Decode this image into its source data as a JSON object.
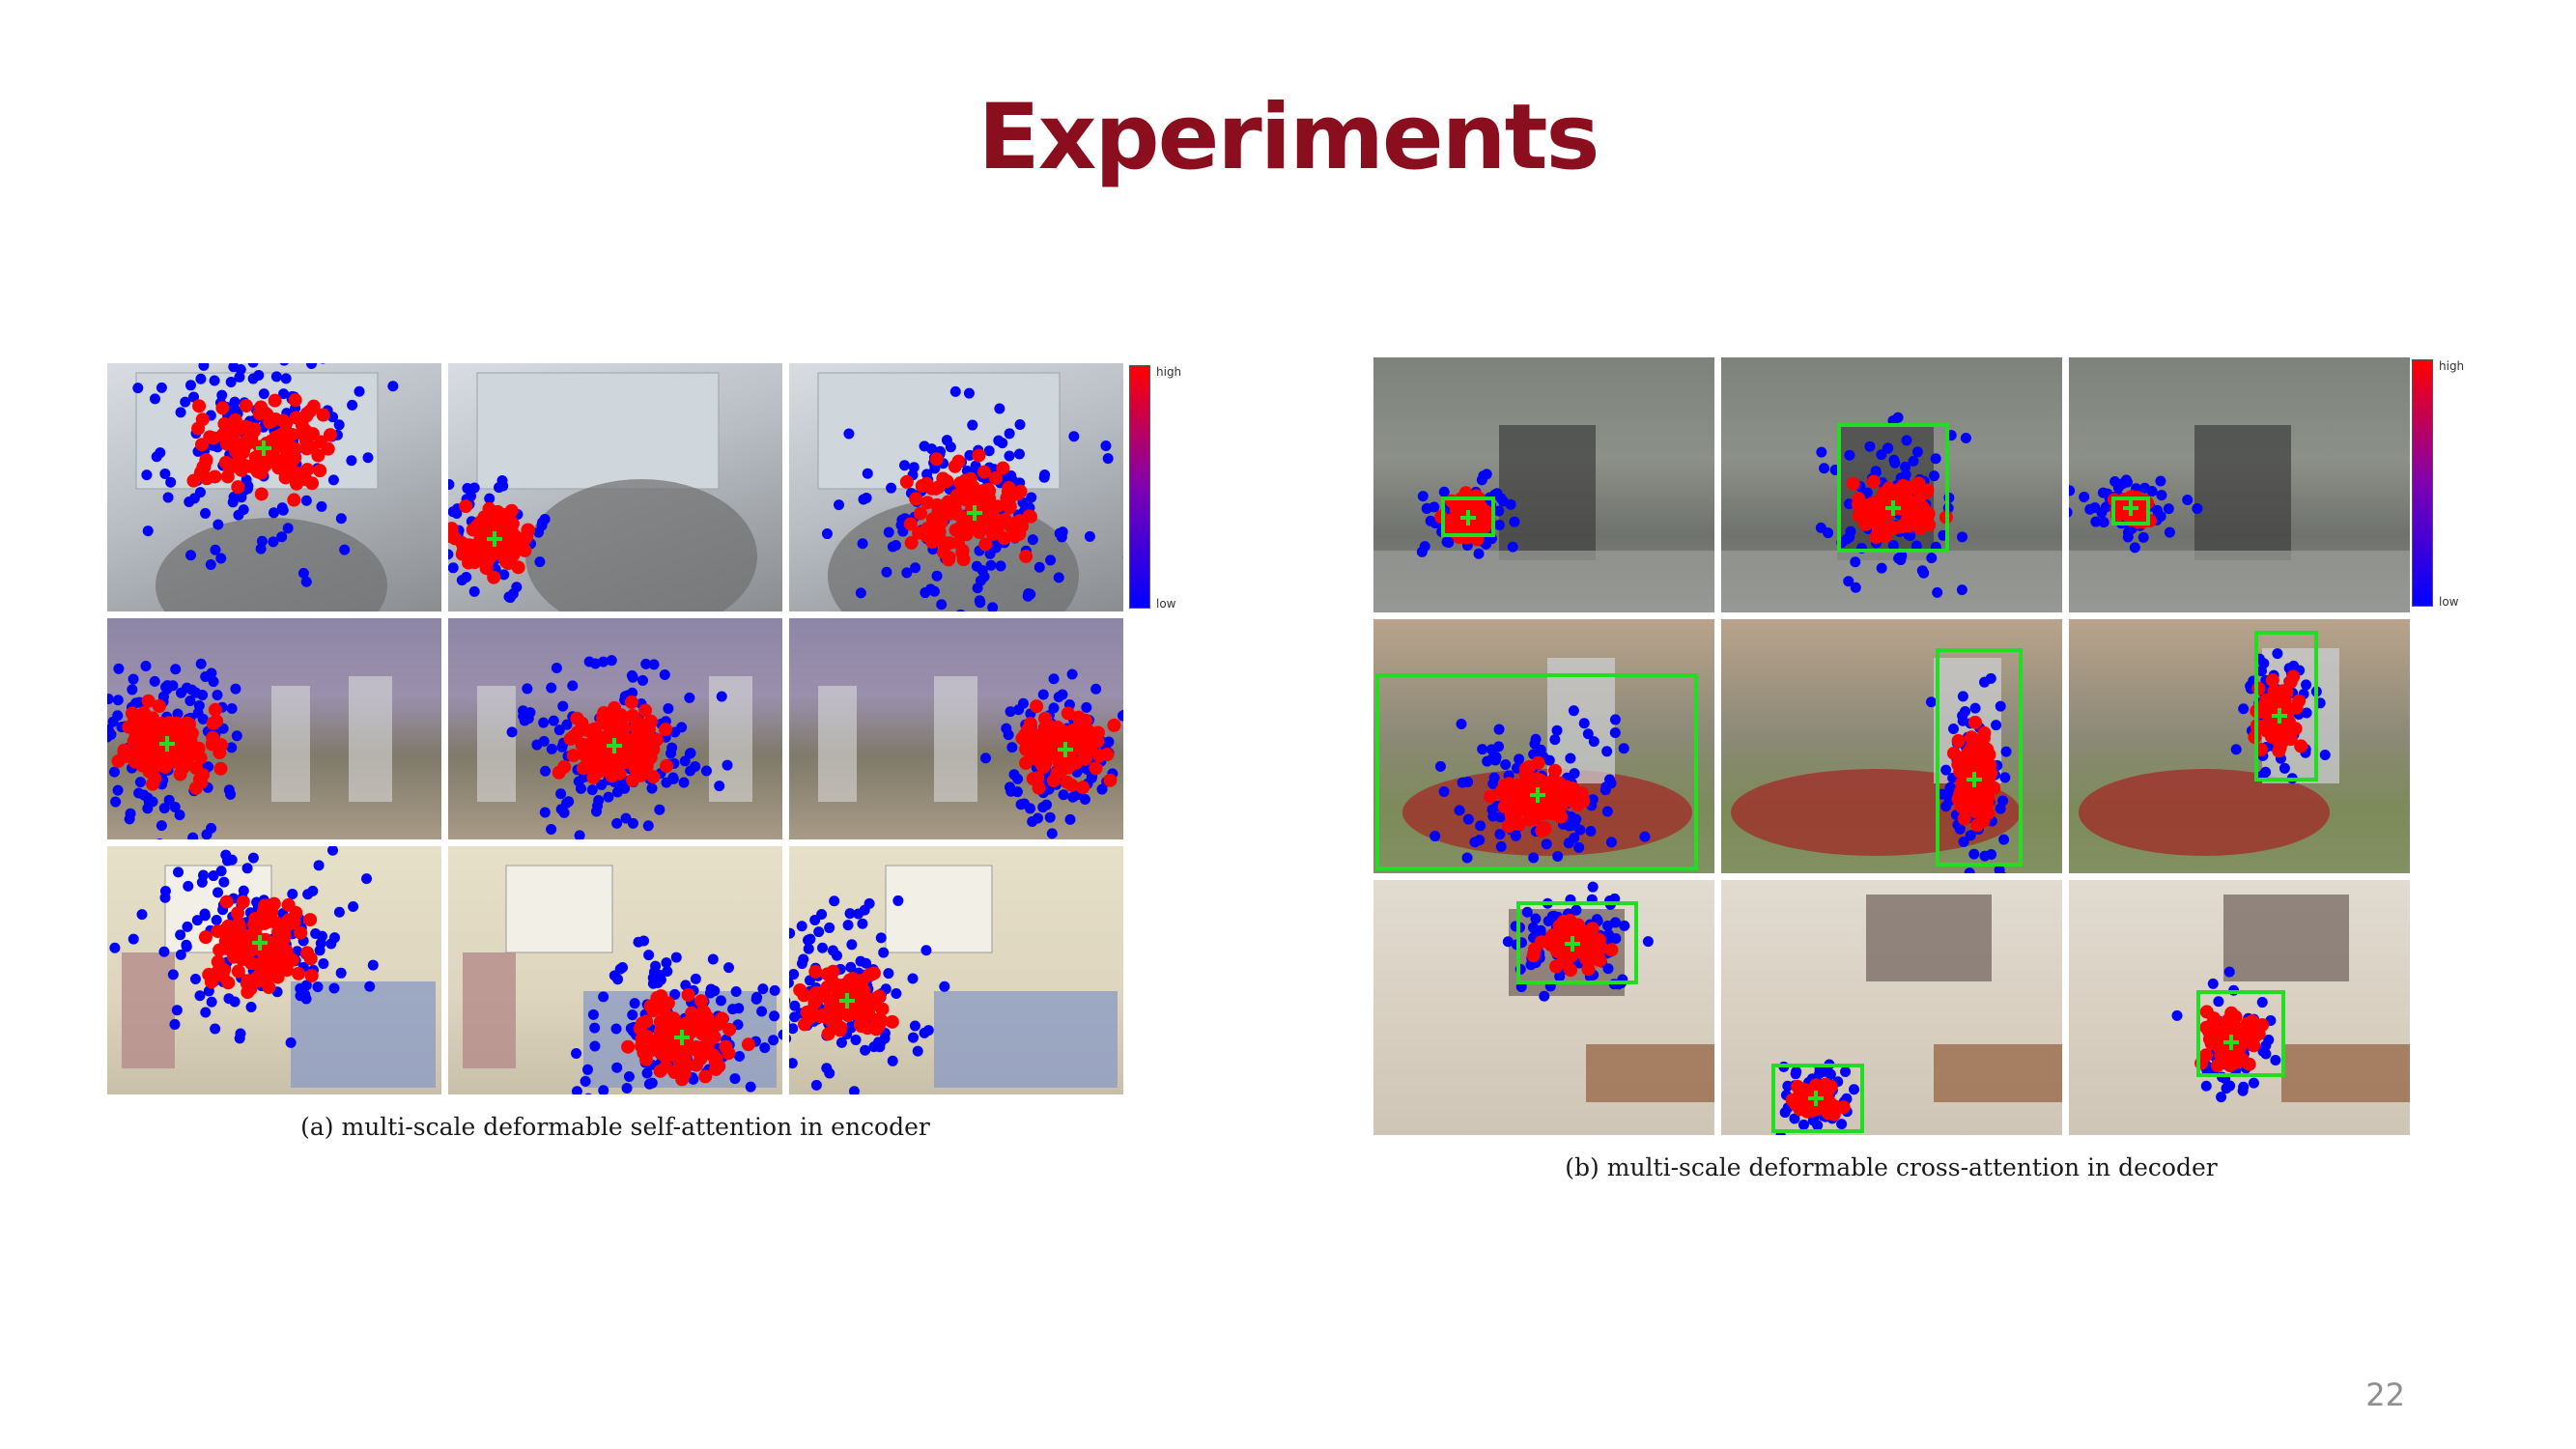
{
  "slide": {
    "title": "Experiments",
    "page_number": "22"
  },
  "figure_a": {
    "caption": "(a) multi-scale deformable self-attention in encoder",
    "colorbar": {
      "high_label": "high",
      "low_label": "low"
    }
  },
  "figure_b": {
    "caption": "(b) multi-scale deformable cross-attention in decoder",
    "colorbar": {
      "high_label": "high",
      "low_label": "low"
    }
  },
  "colors": {
    "title": "#8b0e1e",
    "high_attention": "#ff0000",
    "low_attention": "#0000ff",
    "reference_point": "#22dd22",
    "detection_box": "#22dd22"
  }
}
